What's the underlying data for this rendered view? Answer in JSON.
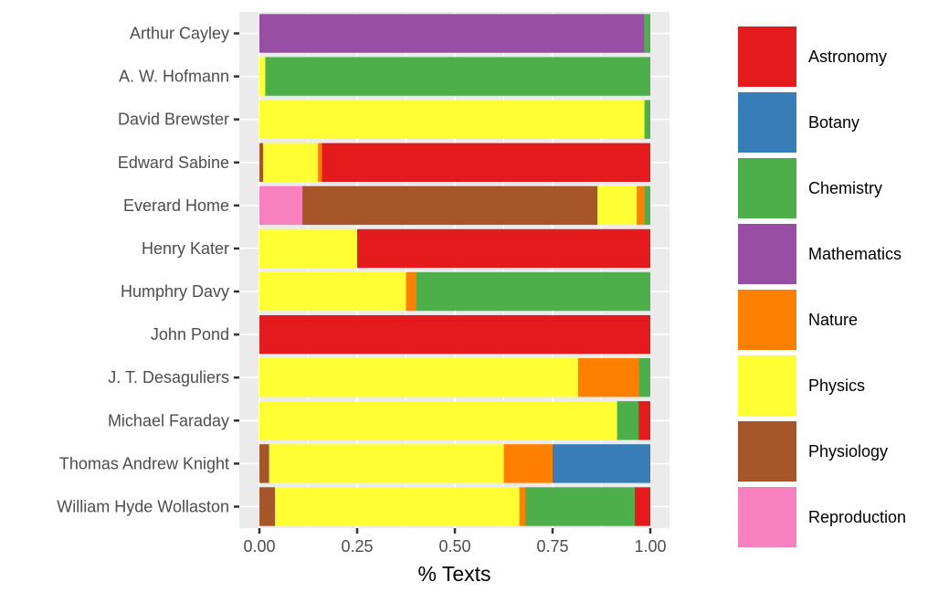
{
  "chart_data": {
    "type": "bar",
    "orientation": "horizontal",
    "stacked": true,
    "xlabel": "% Texts",
    "ylabel": "",
    "xlim": [
      0,
      1
    ],
    "xticks": [
      "0.00",
      "0.25",
      "0.50",
      "0.75",
      "1.00"
    ],
    "grid": true,
    "legend_position": "right",
    "categories": [
      "Arthur Cayley",
      "A. W. Hofmann",
      "David Brewster",
      "Edward Sabine",
      "Everard Home",
      "Henry Kater",
      "Humphry Davy",
      "John Pond",
      "J. T. Desaguliers",
      "Michael Faraday",
      "Thomas Andrew Knight",
      "William Hyde Wollaston"
    ],
    "stack_order": [
      "Reproduction",
      "Physiology",
      "Physics",
      "Nature",
      "Mathematics",
      "Chemistry",
      "Botany",
      "Astronomy"
    ],
    "series": [
      {
        "name": "Astronomy",
        "color": "#e41a1c",
        "values": [
          0,
          0,
          0,
          0.84,
          0,
          0.75,
          0,
          1.0,
          0,
          0.03,
          0,
          0.04
        ]
      },
      {
        "name": "Botany",
        "color": "#377eb8",
        "values": [
          0,
          0,
          0,
          0,
          0,
          0,
          0,
          0,
          0,
          0,
          0.25,
          0
        ]
      },
      {
        "name": "Chemistry",
        "color": "#4daf4a",
        "values": [
          0.015,
          0.985,
          0.015,
          0,
          0.015,
          0,
          0.6,
          0,
          0.03,
          0.055,
          0,
          0.28
        ]
      },
      {
        "name": "Mathematics",
        "color": "#984ea3",
        "values": [
          0.985,
          0,
          0,
          0,
          0,
          0,
          0,
          0,
          0,
          0,
          0,
          0
        ]
      },
      {
        "name": "Nature",
        "color": "#ff7f00",
        "values": [
          0,
          0,
          0,
          0.01,
          0.02,
          0,
          0.025,
          0,
          0.155,
          0,
          0.125,
          0.015
        ]
      },
      {
        "name": "Physics",
        "color": "#ffff33",
        "values": [
          0,
          0.015,
          0.985,
          0.14,
          0.1,
          0.25,
          0.375,
          0,
          0.815,
          0.915,
          0.6,
          0.625
        ]
      },
      {
        "name": "Physiology",
        "color": "#a65628",
        "values": [
          0,
          0,
          0,
          0.01,
          0.755,
          0,
          0,
          0,
          0,
          0,
          0.025,
          0.04
        ]
      },
      {
        "name": "Reproduction",
        "color": "#f781bf",
        "values": [
          0,
          0,
          0,
          0,
          0.11,
          0,
          0,
          0,
          0,
          0,
          0,
          0
        ]
      }
    ]
  }
}
